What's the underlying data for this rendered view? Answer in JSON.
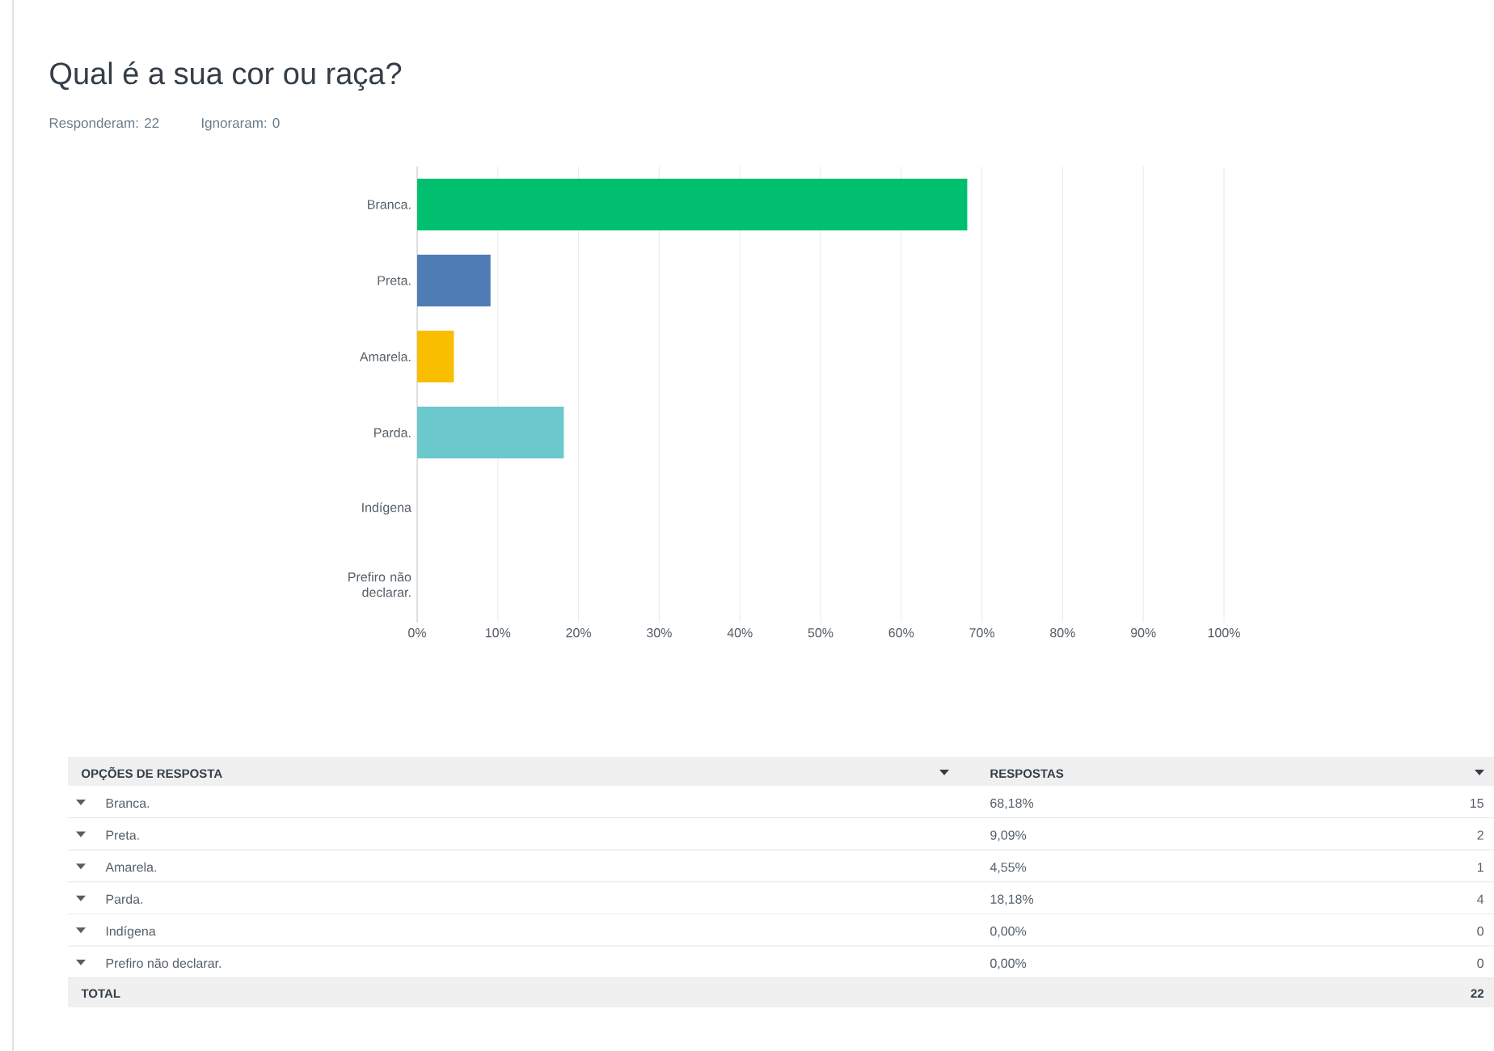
{
  "chart_data": {
    "type": "bar",
    "orientation": "horizontal",
    "title": "Qual é a sua cor ou raça?",
    "subtitle": "Responderam: 22",
    "categories": [
      "Branca.",
      "Preta.",
      "Amarela.",
      "Parda.",
      "Indígena",
      "Prefiro não declarar."
    ],
    "values": [
      68.18,
      9.09,
      4.55,
      18.18,
      0,
      0
    ],
    "colors": [
      "#00bf6f",
      "#507cb6",
      "#f9be00",
      "#6bc8cd",
      "#00bf6f",
      "#00bf6f"
    ],
    "xlim": [
      0,
      100
    ],
    "xticks": [
      {
        "value": 0,
        "label": "0%"
      },
      {
        "value": 10,
        "label": "10%"
      },
      {
        "value": 20,
        "label": "20%"
      },
      {
        "value": 30,
        "label": "30%"
      },
      {
        "value": 40,
        "label": "40%"
      },
      {
        "value": 50,
        "label": "50%"
      },
      {
        "value": 60,
        "label": "60%"
      },
      {
        "value": 70,
        "label": "70%"
      },
      {
        "value": 80,
        "label": "80%"
      },
      {
        "value": 90,
        "label": "90%"
      },
      {
        "value": 100,
        "label": "100%"
      }
    ],
    "grid": "x",
    "annotations": [
      "Ignoraram: 0",
      "OPÇÕES DE RESPOSTA",
      "RESPOSTAS",
      "68,18%",
      "9,09%",
      "4,55%",
      "18,18%",
      "0,00%",
      "0,00%",
      "15",
      "2",
      "1",
      "4",
      "0",
      "0",
      "TOTAL",
      "22"
    ]
  }
}
